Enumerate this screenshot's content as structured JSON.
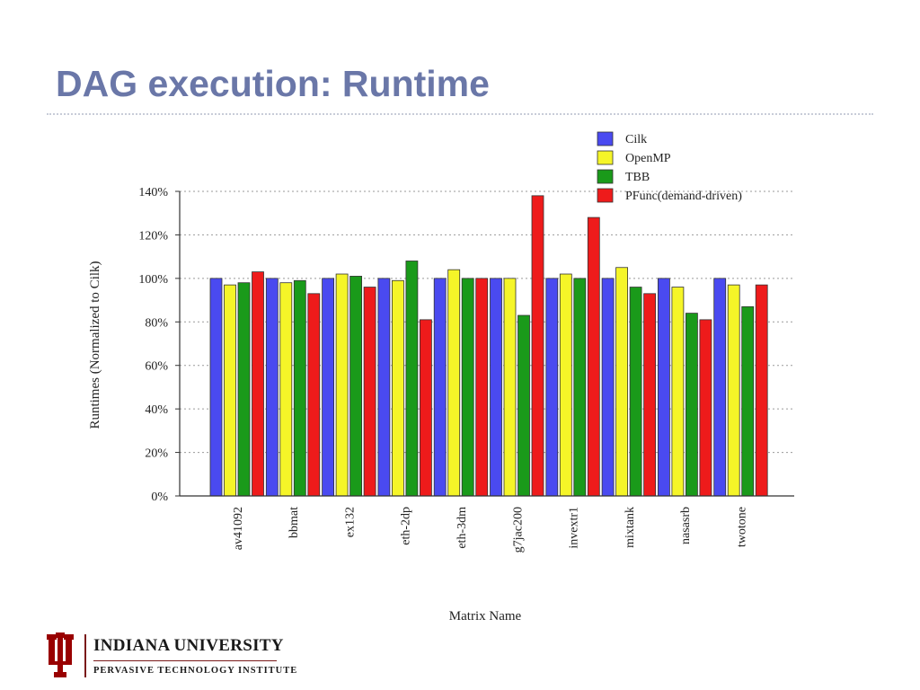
{
  "slide": {
    "title": "DAG execution: Runtime"
  },
  "chart_data": {
    "type": "bar",
    "title": "",
    "xlabel": "Matrix Name",
    "ylabel": "Runtimes (Normalized to Cilk)",
    "ylim": [
      0,
      140
    ],
    "yticks": [
      0,
      20,
      40,
      60,
      80,
      100,
      120,
      140
    ],
    "ytick_labels": [
      "0%",
      "20%",
      "40%",
      "60%",
      "80%",
      "100%",
      "120%",
      "140%"
    ],
    "grid": "horizontal dotted",
    "legend_position": "top-right",
    "categories": [
      "av41092",
      "bbmat",
      "ex132",
      "eth-2dp",
      "eth-3dm",
      "g7jac200",
      "invextr1",
      "mixtank",
      "nasasrb",
      "twotone"
    ],
    "series": [
      {
        "name": "Cilk",
        "color": "#4a4af0",
        "values": [
          100,
          100,
          100,
          100,
          100,
          100,
          100,
          100,
          100,
          100
        ]
      },
      {
        "name": "OpenMP",
        "color": "#f5f528",
        "values": [
          97,
          98,
          102,
          99,
          104,
          100,
          102,
          105,
          96,
          97
        ]
      },
      {
        "name": "TBB",
        "color": "#1a9a1a",
        "values": [
          98,
          99,
          101,
          108,
          100,
          83,
          100,
          96,
          84,
          87
        ]
      },
      {
        "name": "PFunc(demand-driven)",
        "color": "#ee1b1b",
        "values": [
          103,
          93,
          96,
          81,
          100,
          138,
          128,
          93,
          81,
          97
        ]
      }
    ]
  },
  "footer": {
    "university": "INDIANA UNIVERSITY",
    "institute": "PERVASIVE TECHNOLOGY INSTITUTE"
  }
}
